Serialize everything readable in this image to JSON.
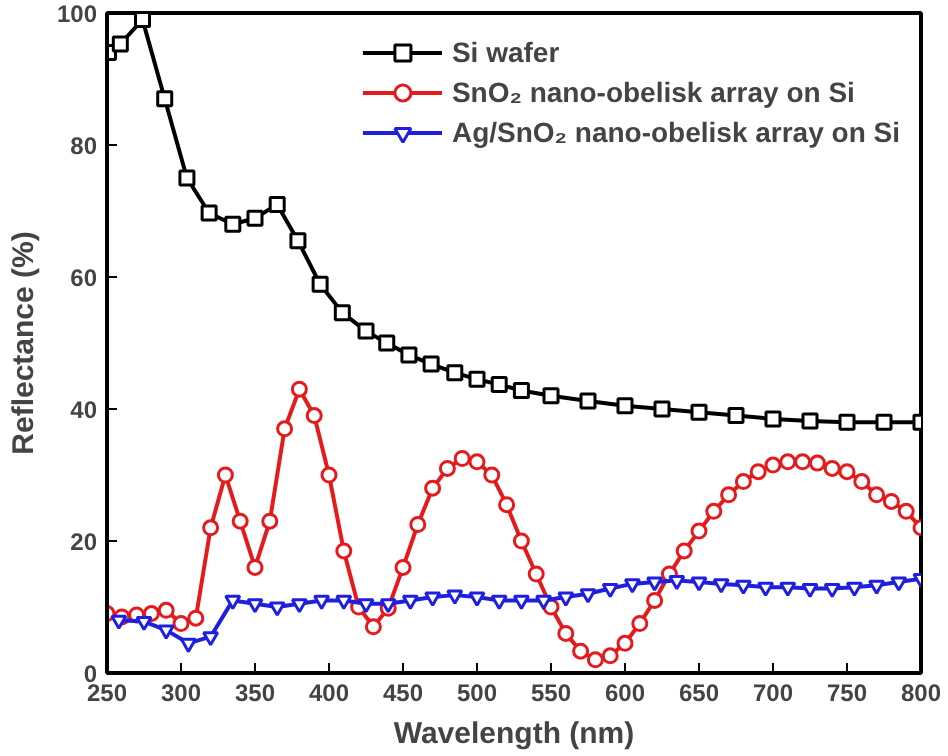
{
  "chart_data": {
    "type": "line",
    "xlabel": "Wavelength (nm)",
    "ylabel": "Reflectance (%)",
    "xlim": [
      250,
      800
    ],
    "xticks": [
      250,
      300,
      350,
      400,
      450,
      500,
      550,
      600,
      650,
      700,
      750,
      800
    ],
    "ylim": [
      0,
      100
    ],
    "yticks": [
      0,
      20,
      40,
      60,
      80,
      100
    ],
    "grid": false,
    "legend": "top right",
    "line_style": "solid",
    "series": [
      {
        "name": "Si wafer",
        "color": "#000000",
        "marker": "square",
        "x": [
          251,
          259,
          274,
          289,
          304,
          319,
          335,
          350,
          365,
          379,
          394,
          409,
          425,
          439,
          454,
          469,
          485,
          500,
          515,
          530,
          550,
          575,
          600,
          625,
          650,
          675,
          700,
          725,
          750,
          775,
          800
        ],
        "values": [
          94,
          95.3,
          99,
          87,
          75,
          69.7,
          68,
          68.9,
          71,
          65.5,
          58.9,
          54.6,
          51.8,
          50,
          48.2,
          46.8,
          45.5,
          44.5,
          43.7,
          42.8,
          42,
          41.2,
          40.5,
          40,
          39.5,
          39,
          38.5,
          38.2,
          38,
          38,
          38
        ]
      },
      {
        "name": "SnO₂ nano-obelisk array on Si",
        "color": "#e41a1c",
        "marker": "circle",
        "x": [
          250,
          260,
          270,
          280,
          290,
          300,
          310,
          320,
          330,
          340,
          350,
          360,
          370,
          380,
          390,
          400,
          410,
          420,
          430,
          440,
          450,
          460,
          470,
          480,
          490,
          500,
          510,
          520,
          530,
          540,
          550,
          560,
          570,
          580,
          590,
          600,
          610,
          620,
          630,
          640,
          650,
          660,
          670,
          680,
          690,
          700,
          710,
          720,
          730,
          740,
          750,
          760,
          770,
          780,
          790,
          800
        ],
        "values": [
          9,
          8.5,
          8.8,
          9,
          9.5,
          7.5,
          8.3,
          22,
          30,
          23,
          16,
          23,
          37,
          43,
          39,
          30,
          18.5,
          10,
          7,
          9.8,
          16,
          22.5,
          28,
          31,
          32.5,
          32,
          30,
          25.5,
          20,
          15,
          10,
          6,
          3.3,
          2,
          2.6,
          4.5,
          7.5,
          11,
          15,
          18.5,
          21.5,
          24.5,
          27,
          29,
          30.5,
          31.5,
          32,
          32,
          31.8,
          31,
          30.5,
          29,
          27,
          26,
          24.5,
          22
        ]
      },
      {
        "name": "Ag/SnO₂ nano-obelisk array on Si",
        "color": "#1f1fe0",
        "marker": "triangle",
        "x": [
          258,
          275,
          290,
          305,
          320,
          335,
          350,
          365,
          380,
          395,
          410,
          425,
          440,
          455,
          470,
          485,
          500,
          515,
          530,
          545,
          560,
          575,
          590,
          605,
          620,
          635,
          650,
          665,
          680,
          695,
          710,
          725,
          740,
          755,
          770,
          785,
          800
        ],
        "values": [
          8,
          7.8,
          6.5,
          4.5,
          5.5,
          11,
          10.5,
          10,
          10.5,
          11,
          11,
          10.5,
          10.5,
          11,
          11.5,
          11.8,
          11.5,
          11,
          11,
          11,
          11.5,
          12,
          12.8,
          13.5,
          13.8,
          14,
          13.8,
          13.5,
          13.3,
          13,
          13,
          12.8,
          12.8,
          13,
          13.3,
          13.8,
          14.3
        ]
      }
    ]
  }
}
